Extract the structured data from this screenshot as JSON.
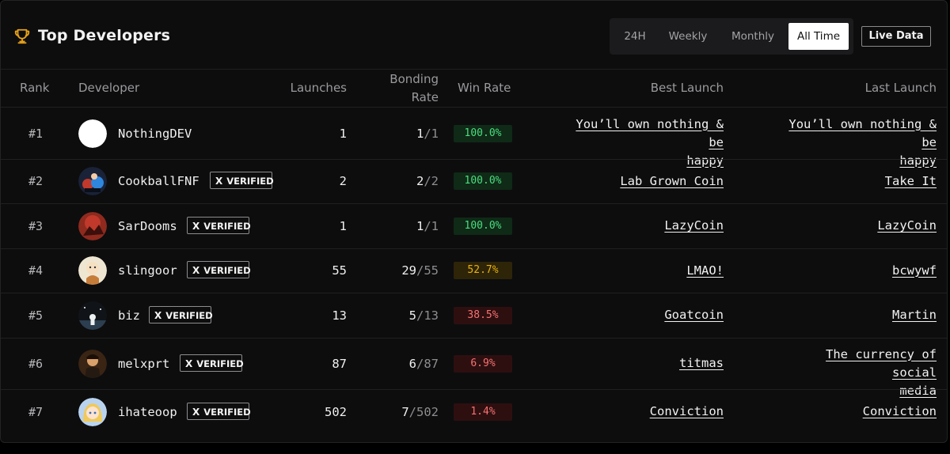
{
  "header": {
    "title": "Top Developers",
    "icon": "trophy-icon",
    "accent_color": "#e8a317",
    "tabs": [
      {
        "label": "24H",
        "active": false
      },
      {
        "label": "Weekly",
        "active": false
      },
      {
        "label": "Monthly",
        "active": false
      },
      {
        "label": "All Time",
        "active": true
      }
    ],
    "live_button": "Live Data"
  },
  "columns": {
    "rank": "Rank",
    "developer": "Developer",
    "launches": "Launches",
    "bonding_rate_1": "Bonding",
    "bonding_rate_2": "Rate",
    "win_rate": "Win Rate",
    "best_launch": "Best Launch",
    "last_launch": "Last Launch"
  },
  "badge_text": "VERIFIED",
  "badge_icon": "x-logo-icon",
  "status_colors": {
    "high": "#22c55e",
    "mid": "#eab308",
    "low": "#ef4444"
  },
  "rows": [
    {
      "rank": "#1",
      "name": "NothingDEV",
      "verified": false,
      "launches": "1",
      "bond_num": "1",
      "bond_den": "/1",
      "win_rate": "100.0%",
      "tier": "high",
      "best": [
        "You’ll own nothing & be",
        "happy"
      ],
      "last": [
        "You’ll own nothing & be",
        "happy"
      ]
    },
    {
      "rank": "#2",
      "name": "CookballFNF",
      "verified": true,
      "launches": "2",
      "bond_num": "2",
      "bond_den": "/2",
      "win_rate": "100.0%",
      "tier": "high",
      "best": [
        "Lab Grown Coin"
      ],
      "last": [
        "Take It"
      ]
    },
    {
      "rank": "#3",
      "name": "SarDooms",
      "verified": true,
      "launches": "1",
      "bond_num": "1",
      "bond_den": "/1",
      "win_rate": "100.0%",
      "tier": "high",
      "best": [
        "LazyCoin"
      ],
      "last": [
        "LazyCoin"
      ]
    },
    {
      "rank": "#4",
      "name": "slingoor",
      "verified": true,
      "launches": "55",
      "bond_num": "29",
      "bond_den": "/55",
      "win_rate": "52.7%",
      "tier": "mid",
      "best": [
        "LMAO!"
      ],
      "last": [
        "bcwywf"
      ]
    },
    {
      "rank": "#5",
      "name": "biz",
      "verified": true,
      "launches": "13",
      "bond_num": "5",
      "bond_den": "/13",
      "win_rate": "38.5%",
      "tier": "low",
      "best": [
        "Goatcoin"
      ],
      "last": [
        "Martin"
      ]
    },
    {
      "rank": "#6",
      "name": "melxprt",
      "verified": true,
      "launches": "87",
      "bond_num": "6",
      "bond_den": "/87",
      "win_rate": "6.9%",
      "tier": "low",
      "best": [
        "titmas"
      ],
      "last": [
        "The currency of social",
        "media"
      ]
    },
    {
      "rank": "#7",
      "name": "ihateoop",
      "verified": true,
      "launches": "502",
      "bond_num": "7",
      "bond_den": "/502",
      "win_rate": "1.4%",
      "tier": "low",
      "best": [
        "Conviction"
      ],
      "last": [
        "Conviction"
      ]
    }
  ]
}
